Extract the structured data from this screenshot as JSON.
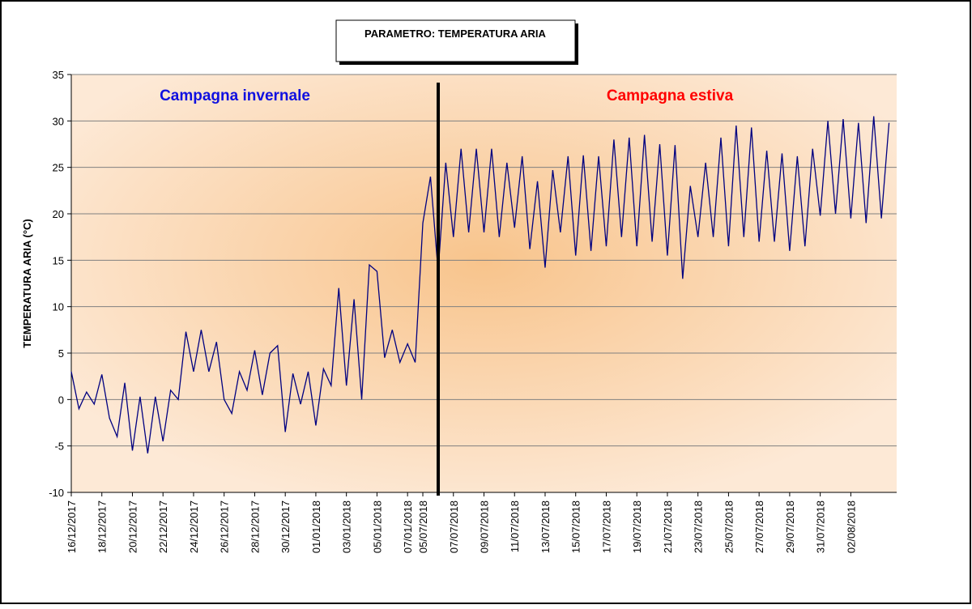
{
  "chart_data": {
    "type": "line",
    "title": "PARAMETRO: TEMPERATURA ARIA",
    "y_label": "TEMPERATURA ARIA (°C)",
    "annotations": [
      {
        "text": "Campagna invernale",
        "color": "#1010e0"
      },
      {
        "text": "Campagna estiva",
        "color": "#ff0000"
      }
    ],
    "categories": [
      "16/12/2017",
      null,
      null,
      null,
      "18/12/2017",
      null,
      null,
      null,
      "20/12/2017",
      null,
      null,
      null,
      "22/12/2017",
      null,
      null,
      null,
      "24/12/2017",
      null,
      null,
      null,
      "26/12/2017",
      null,
      null,
      null,
      "28/12/2017",
      null,
      null,
      null,
      "30/12/2017",
      null,
      null,
      null,
      "01/01/2018",
      null,
      null,
      null,
      "03/01/2018",
      null,
      null,
      null,
      "05/01/2018",
      null,
      null,
      null,
      "07/01/2018",
      null,
      "05/07/2018",
      null,
      null,
      null,
      "07/07/2018",
      null,
      null,
      null,
      "09/07/2018",
      null,
      null,
      null,
      "11/07/2018",
      null,
      null,
      null,
      "13/07/2018",
      null,
      null,
      null,
      "15/07/2018",
      null,
      null,
      null,
      "17/07/2018",
      null,
      null,
      null,
      "19/07/2018",
      null,
      null,
      null,
      "21/07/2018",
      null,
      null,
      null,
      "23/07/2018",
      null,
      null,
      null,
      "25/07/2018",
      null,
      null,
      null,
      "27/07/2018",
      null,
      null,
      null,
      "29/07/2018",
      null,
      null,
      null,
      "31/07/2018",
      null,
      null,
      null,
      "02/08/2018",
      null,
      null,
      null,
      null,
      null
    ],
    "series": [
      {
        "name": "Temperatura aria",
        "color": "#000080",
        "values": [
          3,
          -1,
          0.8,
          -0.5,
          2.7,
          -2,
          -4,
          1.8,
          -5.5,
          0.3,
          -5.8,
          0.3,
          -4.5,
          1,
          0,
          7.3,
          3,
          7.5,
          3,
          6.2,
          0,
          -1.5,
          3,
          1,
          5.3,
          0.5,
          5,
          5.8,
          -3.5,
          2.8,
          -0.5,
          3,
          -2.8,
          3.3,
          1.5,
          12,
          1.5,
          10.8,
          0,
          14.5,
          13.8,
          4.5,
          7.5,
          4,
          6,
          4,
          19,
          24,
          13.8,
          25.5,
          17.5,
          27,
          18,
          27,
          18,
          27,
          17.5,
          25.5,
          18.5,
          26.2,
          16.2,
          23.5,
          14.2,
          24.7,
          18,
          26.2,
          15.5,
          26.3,
          16,
          26.2,
          16.5,
          28,
          17.5,
          28.2,
          16.5,
          28.5,
          17,
          27.5,
          15.5,
          27.4,
          13,
          23,
          17.5,
          25.5,
          17.5,
          28.2,
          16.5,
          29.5,
          17.5,
          29.3,
          17,
          26.8,
          17,
          26.5,
          16,
          26.2,
          16.5,
          27,
          19.8,
          30,
          20,
          30.2,
          19.5,
          29.8,
          19,
          30.5,
          19.5,
          29.8
        ]
      }
    ],
    "ylim": [
      -10,
      35
    ],
    "yticks": [
      -10,
      -5,
      0,
      5,
      10,
      15,
      20,
      25,
      30,
      35
    ],
    "grid": true
  }
}
